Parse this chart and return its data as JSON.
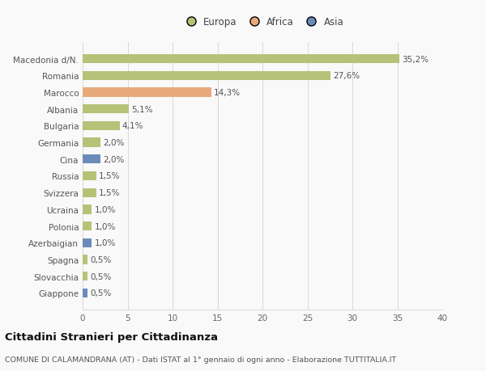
{
  "categories": [
    "Giappone",
    "Slovacchia",
    "Spagna",
    "Azerbaigian",
    "Polonia",
    "Ucraina",
    "Svizzera",
    "Russia",
    "Cina",
    "Germania",
    "Bulgaria",
    "Albania",
    "Marocco",
    "Romania",
    "Macedonia d/N."
  ],
  "values": [
    0.5,
    0.5,
    0.5,
    1.0,
    1.0,
    1.0,
    1.5,
    1.5,
    2.0,
    2.0,
    4.1,
    5.1,
    14.3,
    27.6,
    35.2
  ],
  "labels": [
    "0,5%",
    "0,5%",
    "0,5%",
    "1,0%",
    "1,0%",
    "1,0%",
    "1,5%",
    "1,5%",
    "2,0%",
    "2,0%",
    "4,1%",
    "5,1%",
    "14,3%",
    "27,6%",
    "35,2%"
  ],
  "colors": [
    "#6b8cba",
    "#b5c278",
    "#b5c278",
    "#6b8cba",
    "#b5c278",
    "#b5c278",
    "#b5c278",
    "#b5c278",
    "#6b8cba",
    "#b5c278",
    "#b5c278",
    "#b5c278",
    "#e8aa7a",
    "#b5c278",
    "#b5c278"
  ],
  "legend_labels": [
    "Europa",
    "Africa",
    "Asia"
  ],
  "legend_colors": [
    "#b5c278",
    "#e8aa7a",
    "#6b8cba"
  ],
  "title": "Cittadini Stranieri per Cittadinanza",
  "subtitle": "COMUNE DI CALAMANDRANA (AT) - Dati ISTAT al 1° gennaio di ogni anno - Elaborazione TUTTITALIA.IT",
  "xlim": [
    0,
    40
  ],
  "xticks": [
    0,
    5,
    10,
    15,
    20,
    25,
    30,
    35,
    40
  ],
  "background_color": "#f9f9f9",
  "grid_color": "#d8d8d8",
  "bar_height": 0.55,
  "label_fontsize": 7.5,
  "yticklabel_fontsize": 7.5,
  "xticklabel_fontsize": 7.5,
  "title_fontsize": 9.5,
  "subtitle_fontsize": 6.8,
  "legend_fontsize": 8.5
}
